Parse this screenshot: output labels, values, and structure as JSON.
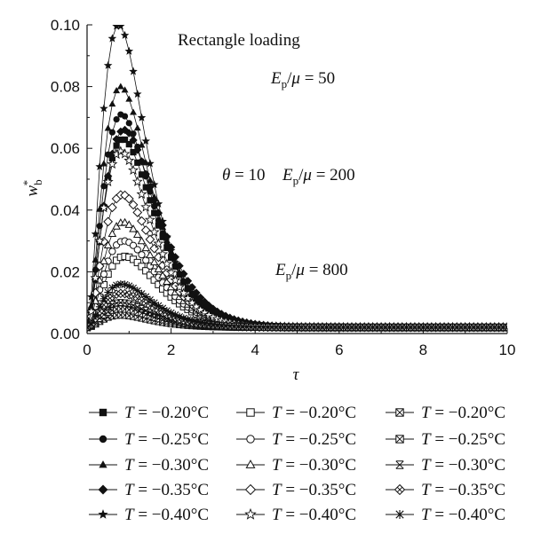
{
  "chart_data": {
    "type": "line",
    "title": "",
    "xlabel": "τ",
    "ylabel": "w*b",
    "xlim": [
      0,
      10
    ],
    "ylim": [
      0,
      0.1
    ],
    "x_ticks": [
      0,
      2,
      4,
      6,
      8,
      10
    ],
    "y_ticks": [
      0.0,
      0.02,
      0.04,
      0.06,
      0.08,
      0.1
    ],
    "x_tick_labels": [
      "0",
      "2",
      "4",
      "6",
      "8",
      "10"
    ],
    "y_tick_labels": [
      "0.00",
      "0.02",
      "0.04",
      "0.06",
      "0.08",
      "0.10"
    ],
    "grid": false,
    "legend_position": "bottom",
    "annotations": {
      "loading": "Rectangle loading",
      "theta": "θ = 10",
      "ratio_50": "Ep/μ = 50",
      "ratio_200": "Ep/μ = 200",
      "ratio_800": "Ep/μ = 800"
    },
    "series": [
      {
        "name": "T = −0.20°C",
        "ratio": 50,
        "marker": "square-filled",
        "peak": 0.063,
        "tpeak": 0.85
      },
      {
        "name": "T = −0.25°C",
        "ratio": 50,
        "marker": "circle-filled",
        "peak": 0.071,
        "tpeak": 0.82
      },
      {
        "name": "T = −0.30°C",
        "ratio": 50,
        "marker": "triangle-filled",
        "peak": 0.08,
        "tpeak": 0.8
      },
      {
        "name": "T = −0.35°C",
        "ratio": 50,
        "marker": "diamond-filled",
        "peak": 0.066,
        "tpeak": 0.88
      },
      {
        "name": "T = −0.40°C",
        "ratio": 50,
        "marker": "star-filled",
        "peak": 0.1,
        "tpeak": 0.75
      },
      {
        "name": "T = −0.20°C",
        "ratio": 200,
        "marker": "square-open",
        "peak": 0.025,
        "tpeak": 0.9
      },
      {
        "name": "T = −0.25°C",
        "ratio": 200,
        "marker": "circle-open",
        "peak": 0.03,
        "tpeak": 0.88
      },
      {
        "name": "T = −0.30°C",
        "ratio": 200,
        "marker": "triangle-open",
        "peak": 0.036,
        "tpeak": 0.86
      },
      {
        "name": "T = −0.35°C",
        "ratio": 200,
        "marker": "diamond-open",
        "peak": 0.045,
        "tpeak": 0.84
      },
      {
        "name": "T = −0.40°C",
        "ratio": 200,
        "marker": "star-open",
        "peak": 0.059,
        "tpeak": 0.8
      },
      {
        "name": "T = −0.20°C",
        "ratio": 800,
        "marker": "square-x",
        "peak": 0.006,
        "tpeak": 0.8
      },
      {
        "name": "T = −0.25°C",
        "ratio": 800,
        "marker": "square-x",
        "peak": 0.008,
        "tpeak": 0.8
      },
      {
        "name": "T = −0.30°C",
        "ratio": 800,
        "marker": "bowtie-x",
        "peak": 0.01,
        "tpeak": 0.8
      },
      {
        "name": "T = −0.35°C",
        "ratio": 800,
        "marker": "diamond-x",
        "peak": 0.013,
        "tpeak": 0.82
      },
      {
        "name": "T = −0.40°C",
        "ratio": 800,
        "marker": "asterisk",
        "peak": 0.016,
        "tpeak": 0.82
      }
    ],
    "tail_level": 0.002,
    "x_step": 0.1
  }
}
